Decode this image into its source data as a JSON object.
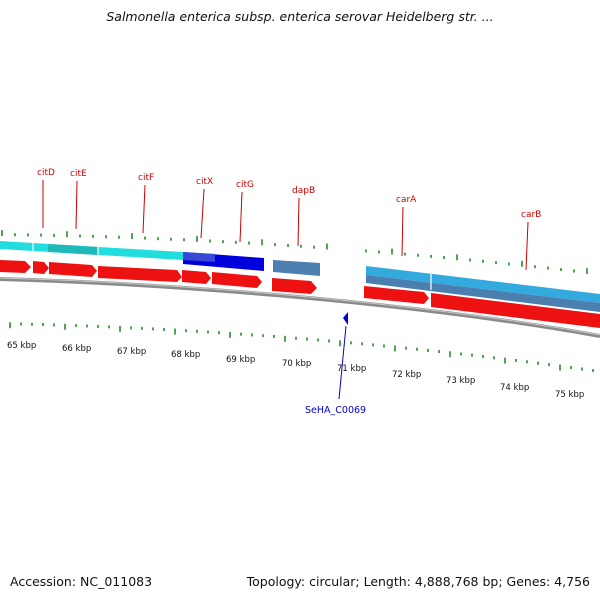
{
  "title": "Salmonella enterica subsp. enterica serovar Heidelberg str. ...",
  "footer": {
    "accession": "Accession: NC_011083",
    "summary": "Topology: circular; Length: 4,888,768 bp; Genes: 4,756"
  },
  "colors": {
    "cds": "#ee1111",
    "gene_cyan": "#22dddd",
    "gene_blue": "#0000dd",
    "gene_steel": "#4a7fb0",
    "gene_sky": "#33aadd",
    "tick": "#2a8a2a",
    "gene_label": "#cc0000",
    "feature": "#0000cc",
    "backbone": "#8a8a8a"
  },
  "kbp_ticks": [
    "65 kbp",
    "66 kbp",
    "67 kbp",
    "68 kbp",
    "69 kbp",
    "70 kbp",
    "71 kbp",
    "72 kbp",
    "73 kbp",
    "74 kbp",
    "75 kbp"
  ],
  "gene_labels": [
    "citD",
    "citE",
    "citF",
    "citX",
    "citG",
    "dapB",
    "carA",
    "carB"
  ],
  "feature": {
    "label": "SeHA_C0069"
  }
}
